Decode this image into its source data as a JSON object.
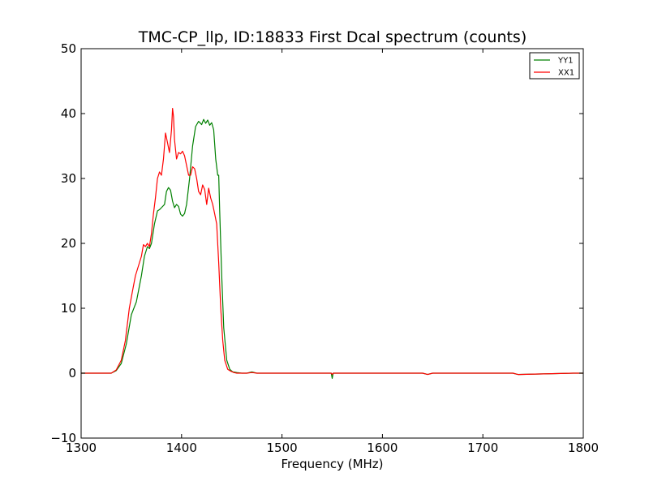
{
  "chart_data": {
    "type": "line",
    "title": "TMC-CP_llp, ID:18833 First Dcal spectrum (counts)",
    "xlabel": "Frequency (MHz)",
    "ylabel": "",
    "xlim": [
      1300,
      1800
    ],
    "ylim": [
      -10,
      50
    ],
    "xticks": [
      1300,
      1400,
      1500,
      1600,
      1700,
      1800
    ],
    "xtick_labels": [
      "1300",
      "1400",
      "1500",
      "1600",
      "1700",
      "1800"
    ],
    "yticks": [
      -10,
      0,
      10,
      20,
      30,
      40,
      50
    ],
    "ytick_labels": [
      "−10",
      "0",
      "10",
      "20",
      "30",
      "40",
      "50"
    ],
    "grid": false,
    "legend": {
      "placement": "top-right"
    },
    "series": [
      {
        "name": "YY1",
        "color": "#008000",
        "x": [
          1300,
          1330,
          1335,
          1340,
          1345,
          1350,
          1355,
          1360,
          1363,
          1366,
          1368,
          1370,
          1373,
          1376,
          1378,
          1380,
          1383,
          1385,
          1387,
          1389,
          1391,
          1393,
          1395,
          1397,
          1399,
          1401,
          1403,
          1405,
          1408,
          1411,
          1414,
          1417,
          1420,
          1422,
          1424,
          1426,
          1428,
          1430,
          1432,
          1434,
          1436,
          1437,
          1438,
          1440,
          1442,
          1445,
          1448,
          1451,
          1455,
          1460,
          1465,
          1470,
          1475,
          1480,
          1500,
          1549,
          1550,
          1551,
          1560,
          1600,
          1640,
          1645,
          1650,
          1700,
          1730,
          1735,
          1790,
          1800
        ],
        "y": [
          0,
          0,
          0.4,
          1.5,
          4.5,
          9,
          11,
          15,
          18,
          19.5,
          19.2,
          20,
          23,
          25,
          25.2,
          25.5,
          26,
          28,
          28.6,
          28.2,
          26.5,
          25.5,
          26,
          25.7,
          24.5,
          24.2,
          24.6,
          26,
          30,
          35,
          38,
          38.8,
          38.3,
          39.1,
          38.5,
          39,
          38.2,
          38.6,
          37.5,
          33,
          30.5,
          30.5,
          25,
          15,
          7,
          2,
          0.6,
          0.2,
          0.1,
          0,
          0,
          0.2,
          0,
          0,
          0,
          0,
          -0.8,
          0,
          0,
          0,
          0,
          -0.2,
          0,
          0,
          0,
          -0.2,
          0,
          0
        ]
      },
      {
        "name": "XX1",
        "color": "#ff0000",
        "x": [
          1300,
          1330,
          1335,
          1340,
          1344,
          1348,
          1351,
          1354,
          1357,
          1360,
          1362,
          1364,
          1366,
          1368,
          1370,
          1372,
          1374,
          1376,
          1378,
          1380,
          1382,
          1384,
          1386,
          1388,
          1390,
          1391,
          1392,
          1393,
          1395,
          1397,
          1399,
          1401,
          1403,
          1405,
          1407,
          1409,
          1411,
          1413,
          1415,
          1417,
          1419,
          1421,
          1423,
          1425,
          1427,
          1429,
          1431,
          1433,
          1435,
          1437,
          1439,
          1441,
          1443,
          1446,
          1449,
          1452,
          1455,
          1460,
          1465,
          1470,
          1475,
          1480,
          1500,
          1549,
          1550,
          1551,
          1560,
          1600,
          1640,
          1645,
          1650,
          1700,
          1730,
          1735,
          1790,
          1800
        ],
        "y": [
          0,
          0,
          0.5,
          2,
          5,
          10,
          12.5,
          15,
          16.5,
          18,
          19.8,
          19.5,
          20,
          19.5,
          21.5,
          24.5,
          27,
          30,
          31,
          30.5,
          33,
          37,
          35.5,
          34,
          37.5,
          40.8,
          39.5,
          36,
          33,
          34,
          33.8,
          34.2,
          33.5,
          32,
          30.5,
          30.5,
          31.8,
          31.5,
          30,
          28,
          27.5,
          29,
          28.3,
          26,
          28.5,
          27,
          26,
          24.5,
          23,
          17,
          10,
          5,
          2,
          0.6,
          0.3,
          0.1,
          0,
          0,
          0,
          0.1,
          0,
          0,
          0,
          0,
          -0.2,
          0,
          0,
          0,
          0,
          -0.2,
          0,
          0,
          0,
          -0.2,
          0,
          0
        ]
      }
    ]
  }
}
